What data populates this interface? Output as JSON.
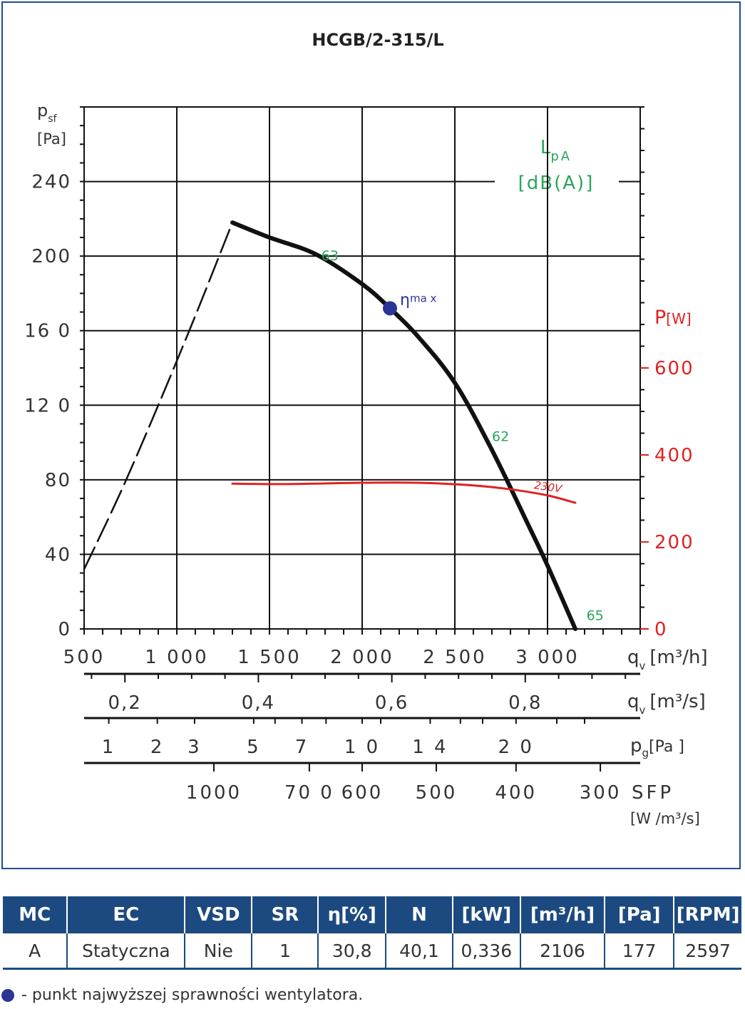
{
  "chart_data": {
    "type": "line",
    "title": "HCGB/2-315/L",
    "y_left_label": "p",
    "y_left_sub": "sf",
    "y_left_unit": "[Pa]",
    "y_left_ticks": [
      "0",
      "40",
      "80",
      "12 0",
      "16 0",
      "200",
      "240"
    ],
    "y_left_range": [
      0,
      280
    ],
    "y_right_label": "P",
    "y_right_unit": "[W]",
    "y_right_ticks": [
      "0",
      "200",
      "400",
      "600"
    ],
    "y_right_range": [
      0,
      1200
    ],
    "x_range": [
      500,
      3500
    ],
    "x_ticks": [
      "500",
      "1 000",
      "1 500",
      "2 000",
      "2 500",
      "3 000"
    ],
    "x_label": "q",
    "x_sub": "v",
    "x_unit_m3h": "[m³/h]",
    "qs_ticks": [
      {
        "v": 0.2,
        "label": "0,2"
      },
      {
        "v": 0.4,
        "label": "0,4"
      },
      {
        "v": 0.6,
        "label": "0,6"
      },
      {
        "v": 0.8,
        "label": "0,8"
      }
    ],
    "qs_unit": "[m³/s]",
    "pg_ticks": [
      {
        "q": 633,
        "label": "1"
      },
      {
        "q": 895,
        "label": "2"
      },
      {
        "q": 1096,
        "label": "3"
      },
      {
        "q": 1415,
        "label": "5"
      },
      {
        "q": 1675,
        "label": "7"
      },
      {
        "q": 2000,
        "label": "1 0"
      },
      {
        "q": 2367,
        "label": "1 4"
      },
      {
        "q": 2830,
        "label": "2 0"
      }
    ],
    "pg_label": "p",
    "pg_sub": "g",
    "pg_unit": "[Pa ]",
    "sfp_ticks": [
      {
        "q": 1200,
        "label": "1000"
      },
      {
        "q": 1715,
        "label": "70 0"
      },
      {
        "q": 2000,
        "label": "600"
      },
      {
        "q": 2400,
        "label": "500"
      },
      {
        "q": 2830,
        "label": "400"
      },
      {
        "q": 3285,
        "label": "300"
      }
    ],
    "sfp_label": "SFP",
    "sfp_unit": "[W /m³/s]",
    "lpa_label": "L",
    "lpa_sub": "pA",
    "lpa_unit": "[dB(A)]",
    "series": [
      {
        "role": "fan_curve_unstable",
        "style": "dashed",
        "color": "#111111",
        "x": [
          500,
          700,
          900,
          1100,
          1300
        ],
        "y": [
          32,
          74,
          120,
          168,
          218
        ]
      },
      {
        "role": "fan_curve",
        "color": "#111111",
        "x": [
          1300,
          1500,
          1750,
          2000,
          2150,
          2300,
          2500,
          2700,
          2900,
          3000,
          3150
        ],
        "y": [
          218,
          210,
          201,
          185,
          172,
          157,
          132,
          96,
          55,
          34,
          0
        ]
      },
      {
        "role": "power",
        "name": "230V",
        "color": "#e02222",
        "axis": "right",
        "x": [
          1300,
          1600,
          2000,
          2300,
          2600,
          2800,
          3000,
          3150
        ],
        "y": [
          334,
          333,
          336,
          336,
          330,
          321,
          307,
          290
        ]
      }
    ],
    "noise_labels": [
      {
        "x": 1780,
        "y": 200,
        "text": "63"
      },
      {
        "x": 2700,
        "y": 103,
        "text": "62"
      },
      {
        "x": 3210,
        "y": 7,
        "text": "65"
      }
    ],
    "eta_max": {
      "x": 2150,
      "y": 172,
      "label": "η",
      "sub": "ma x"
    },
    "grid": true
  },
  "table": {
    "headers": [
      "MC",
      "EC",
      "VSD",
      "SR",
      "η[%]",
      "N",
      "[kW]",
      "[m³/h]",
      "[Pa]",
      "[RPM]"
    ],
    "row": [
      "A",
      "Statyczna",
      "Nie",
      "1",
      "30,8",
      "40,1",
      "0,336",
      "2106",
      "177",
      "2597"
    ]
  },
  "footnote": "- punkt najwyższej sprawności wentylatora.",
  "colors": {
    "frame": "#1e4f8c",
    "header_bg": "#1c4a80",
    "eta_dot": "#2b3597",
    "noise": "#2aa55a",
    "power": "#e02222"
  }
}
